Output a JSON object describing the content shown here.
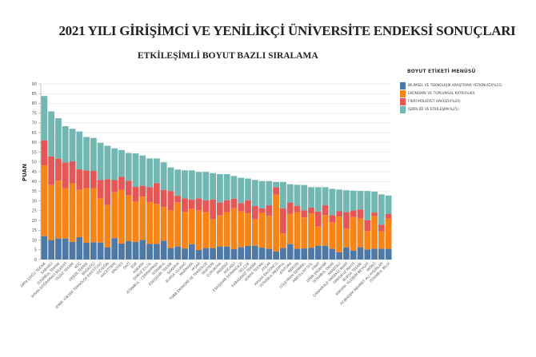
{
  "header": {
    "title": "2021 YILI GİRİŞİMCİ VE YENİLİKÇİ ÜNİVERSİTE ENDEKSİ SONUÇLARI",
    "subtitle": "ETKİLEŞİMLİ BOYUT BAZLI SIRALAMA"
  },
  "chart_data": {
    "type": "bar",
    "stacked": true,
    "ylabel": "PUAN",
    "xlabel": "",
    "ylim": [
      0,
      90
    ],
    "yticks": [
      0,
      5,
      10,
      15,
      20,
      25,
      30,
      35,
      40,
      45,
      50,
      55,
      60,
      65,
      70,
      75,
      80,
      85,
      90
    ],
    "grid": true,
    "legend_title": "BOYUT ETİKETİ MENÜSÜ",
    "legend_position": "right",
    "categories": [
      "ORTA DOĞU TEKNİK",
      "SABANCI",
      "İSTANBUL TEKNİK",
      "İHSAN DOĞRAMACI BİLKENT",
      "YILDIZ TEKNİK",
      "KOÇ",
      "GEBZE TEKNİK",
      "BOĞAZİÇİ",
      "İZMİR YÜKSEK TEKNOLOJİ ENSTİTÜSÜ",
      "ÖZYEĞİN",
      "HACETTEPE",
      "ERCİYES",
      "GAZİ",
      "EGE",
      "ANKARA",
      "DOKUZ EYLÜL",
      "İSTANBUL - CERRAHPAŞA",
      "İSTANBUL",
      "ESKİŞEHİR TEKNİK",
      "SAKARYA",
      "BURSA ULUDAĞ",
      "MARMARA",
      "YAŞAR",
      "TOBB EKONOMİ VE TEKNOLOJİ",
      "YEDİTEPE",
      "ÇUKUROVA",
      "AKDENİZ",
      "KOCAELİ",
      "ESKİŞEHİR OSMANGAZİ",
      "SELÇUK",
      "KARADENİZ TEKNİK",
      "KONYA TEKNİK",
      "ATILIM",
      "HASAN KALYONCU",
      "İSTANBUL MEDİPOL",
      "ATATÜRK",
      "MERSİN",
      "SÜLEYMAN DEMİREL",
      "ABDULLAH GÜL",
      "FIRAT",
      "İZMİR EKONOMİ",
      "İSTANBUL OKAN",
      "ANADOLU",
      "ÇANAKKALE ONSEKİZ MART",
      "ONDOKUZ MAYIS",
      "BURSA TEKNİK",
      "ANKARA YILDIRIM BEYAZIT",
      "İNÖNÜ",
      "ACIBADEM MEHMET ALİ AYDINLAR",
      "İSTANBUL BİLGİ"
    ],
    "series": [
      {
        "name": "BİLİMSEL VE TEKNOLOJİK ARAŞTIRMA YETKİNLİĞİ(%15)",
        "color": "#4e79a7",
        "values": [
          12,
          10,
          10.8,
          10.8,
          9.1,
          11.5,
          8.6,
          8.9,
          8.7,
          6.3,
          11,
          8.2,
          9.4,
          9,
          10.1,
          8,
          8,
          9.7,
          5.9,
          6.7,
          5.7,
          7.9,
          4.9,
          5.9,
          5.9,
          6.7,
          6.7,
          5.3,
          6.3,
          7.1,
          7.1,
          6.1,
          5.5,
          4.1,
          5.9,
          7.9,
          5.5,
          5.7,
          6.1,
          7.1,
          7.1,
          5.5,
          3.8,
          6.3,
          4.6,
          6.3,
          5.2,
          5.6,
          5.6,
          5.5
        ]
      },
      {
        "name": "EKONOMİK VE TOPLUMSAL KATKI(%40)",
        "color": "#f58518",
        "values": [
          36.3,
          28.3,
          29.6,
          25.8,
          29.9,
          24.2,
          28,
          27.7,
          22.5,
          21.7,
          23.5,
          27.5,
          23.5,
          20.6,
          22.1,
          21.5,
          20.5,
          17.2,
          19.3,
          22.6,
          18.7,
          18,
          20.3,
          18.5,
          14.7,
          15.9,
          17.6,
          21,
          18.4,
          16.6,
          13.6,
          17.8,
          16.9,
          29.2,
          7.5,
          15.6,
          18.8,
          15.9,
          17.6,
          9.8,
          15.7,
          13.6,
          18.2,
          9.5,
          17.2,
          14.8,
          9.5,
          16.6,
          8.9,
          15.5
        ]
      },
      {
        "name": "FİKRİ MÜLKİYET HAVUZU(%20)",
        "color": "#e45756",
        "values": [
          12.8,
          14.6,
          11.3,
          13.1,
          11.3,
          10.5,
          9.1,
          8.8,
          9.5,
          13.2,
          6.2,
          6.7,
          7.5,
          7.6,
          5.6,
          7.6,
          10.7,
          8.8,
          9.9,
          3.4,
          7,
          4.8,
          6.2,
          5.9,
          10.2,
          6.6,
          6.1,
          4.9,
          4.2,
          6.7,
          6.7,
          2.4,
          5.4,
          3.7,
          12.9,
          5.7,
          3.1,
          3.6,
          2.9,
          7.7,
          5,
          3.7,
          2.8,
          8.5,
          3.4,
          4.6,
          5.5,
          1.9,
          3.4,
          2.3
        ]
      },
      {
        "name": "İŞBİRLİĞİ VE ETKİLEŞİM(%25)",
        "color": "#72b7b2",
        "values": [
          22.7,
          23,
          20.7,
          18.6,
          16.7,
          19.4,
          17.1,
          16.9,
          19.1,
          17.1,
          16.3,
          13.7,
          14.2,
          17.2,
          15.5,
          14.7,
          12.6,
          14.1,
          12.1,
          13.4,
          14.3,
          15,
          13.5,
          14.6,
          13.5,
          14.6,
          13.4,
          11.6,
          13,
          11.1,
          13.4,
          13.9,
          12.4,
          2.7,
          13.4,
          9.4,
          10.9,
          13,
          10.5,
          12.5,
          9.3,
          13.4,
          11.1,
          11.2,
          10.1,
          9.5,
          14.9,
          10.7,
          15.5,
          9.5
        ]
      }
    ]
  }
}
